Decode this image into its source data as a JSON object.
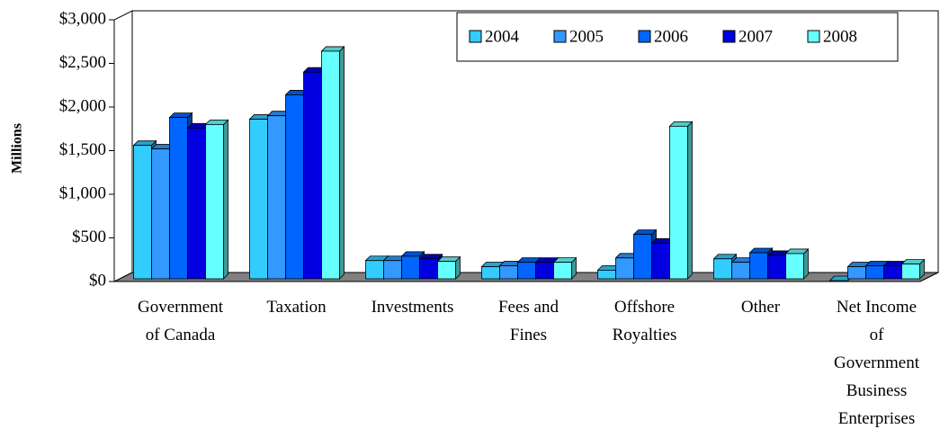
{
  "chart_data": {
    "type": "bar3d",
    "y_label": "Millions",
    "categories": [
      "Government\nof Canada",
      "Taxation",
      "Investments",
      "Fees and\nFines",
      "Offshore\nRoyalties",
      "Other",
      "Net Income\nof\nGovernment\nBusiness\nEnterprises"
    ],
    "series": [
      {
        "name": "2004",
        "color": "#33ccff",
        "values": [
          1560,
          1860,
          240,
          170,
          130,
          260,
          10
        ]
      },
      {
        "name": "2005",
        "color": "#3399ff",
        "values": [
          1520,
          1900,
          240,
          180,
          270,
          220,
          170
        ]
      },
      {
        "name": "2006",
        "color": "#0066ff",
        "values": [
          1880,
          2140,
          290,
          220,
          540,
          330,
          180
        ]
      },
      {
        "name": "2007",
        "color": "#0000e0",
        "values": [
          1760,
          2400,
          260,
          220,
          440,
          300,
          180
        ]
      },
      {
        "name": "2008",
        "color": "#66ffff",
        "values": [
          1800,
          2640,
          230,
          220,
          1780,
          320,
          200
        ]
      }
    ],
    "ylim": [
      0,
      3000
    ],
    "yticks": [
      {
        "value": 0,
        "label": "$0"
      },
      {
        "value": 500,
        "label": "$500"
      },
      {
        "value": 1000,
        "label": "$1,000"
      },
      {
        "value": 1500,
        "label": "$1,500"
      },
      {
        "value": 2000,
        "label": "$2,000"
      },
      {
        "value": 2500,
        "label": "$2,500"
      },
      {
        "value": 3000,
        "label": "$3,000"
      }
    ],
    "legend": "top-right"
  }
}
